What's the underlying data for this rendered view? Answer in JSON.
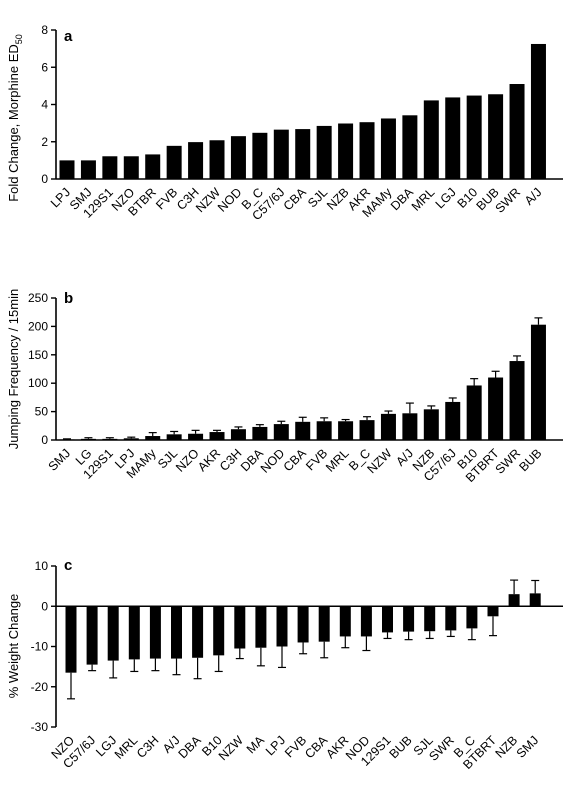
{
  "chart_data": [
    {
      "type": "bar",
      "panel_label": "a",
      "ylabel": "Fold Change, Morphine ED",
      "ylabel_subscript": "50",
      "ylim": [
        0,
        8
      ],
      "yticks": [
        0,
        2,
        4,
        6,
        8
      ],
      "error_bars": false,
      "categories": [
        "LPJ",
        "SMJ",
        "129S1",
        "NZO",
        "BTBR",
        "FVB",
        "C3H",
        "NZW",
        "NOD",
        "B_C",
        "C57/6J",
        "CBA",
        "SJL",
        "NZB",
        "AKR",
        "MAMy",
        "DBA",
        "MRL",
        "LGJ",
        "B10",
        "BUB",
        "SWR",
        "A/J"
      ],
      "values": [
        1.0,
        1.0,
        1.22,
        1.22,
        1.32,
        1.78,
        1.98,
        2.08,
        2.3,
        2.48,
        2.65,
        2.68,
        2.85,
        2.98,
        3.05,
        3.25,
        3.42,
        4.22,
        4.38,
        4.48,
        4.55,
        5.1,
        7.25
      ]
    },
    {
      "type": "bar",
      "panel_label": "b",
      "ylabel": "Jumping Frequency / 15min",
      "ylim": [
        0,
        250
      ],
      "yticks": [
        0,
        50,
        100,
        150,
        200,
        250
      ],
      "error_bars": true,
      "categories": [
        "SMJ",
        "LG",
        "129S1",
        "LPJ",
        "MAMy",
        "SJL",
        "NZO",
        "AKR",
        "C3H",
        "DBA",
        "NOD",
        "CBA",
        "FVB",
        "MRL",
        "B_C",
        "NZW",
        "A/J",
        "NZB",
        "C57/6J",
        "B10",
        "BTBRT",
        "SWR",
        "BUB"
      ],
      "values": [
        1,
        2,
        2,
        3,
        7,
        10,
        11,
        14,
        19,
        23,
        28,
        32,
        33,
        33,
        35,
        46,
        47,
        54,
        67,
        96,
        110,
        139,
        203
      ],
      "errors": [
        1,
        2,
        2,
        2,
        6,
        5,
        6,
        3,
        4,
        4,
        5,
        8,
        6,
        3,
        6,
        5,
        18,
        6,
        7,
        12,
        11,
        9,
        12
      ]
    },
    {
      "type": "bar",
      "panel_label": "c",
      "ylabel": "% Weight Change",
      "ylim": [
        -30,
        10
      ],
      "yticks": [
        -30,
        -20,
        -10,
        0,
        10
      ],
      "error_bars": true,
      "categories": [
        "NZO",
        "C57/6J",
        "LGJ",
        "MRL",
        "C3H",
        "A/J",
        "DBA",
        "B10",
        "NZW",
        "MA",
        "LPJ",
        "FVB",
        "CBA",
        "AKR",
        "NOD",
        "129S1",
        "BUB",
        "SJL",
        "SWR",
        "B_C",
        "BTBRT",
        "NZB",
        "SMJ"
      ],
      "values": [
        -16.5,
        -14.5,
        -13.5,
        -13.2,
        -13.0,
        -13.0,
        -12.8,
        -12.2,
        -10.5,
        -10.3,
        -10.0,
        -9.0,
        -8.8,
        -7.5,
        -7.5,
        -6.5,
        -6.3,
        -6.2,
        -6.0,
        -5.5,
        -2.5,
        3.0,
        3.2
      ],
      "errors": [
        6.5,
        1.5,
        4.3,
        3.0,
        3.0,
        4.0,
        5.2,
        4.0,
        2.5,
        4.5,
        5.2,
        2.8,
        4.0,
        2.8,
        3.5,
        1.5,
        2.0,
        1.8,
        1.5,
        2.8,
        4.8,
        3.5,
        3.2
      ]
    }
  ]
}
